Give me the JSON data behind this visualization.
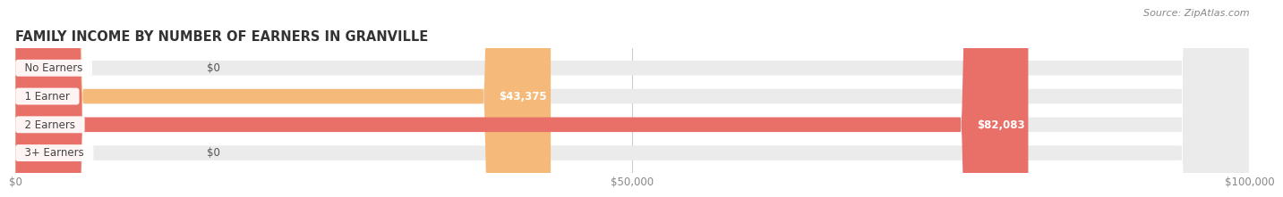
{
  "title": "FAMILY INCOME BY NUMBER OF EARNERS IN GRANVILLE",
  "source": "Source: ZipAtlas.com",
  "categories": [
    "No Earners",
    "1 Earner",
    "2 Earners",
    "3+ Earners"
  ],
  "values": [
    0,
    43375,
    82083,
    0
  ],
  "bar_colors": [
    "#f4a0b5",
    "#f5ba7a",
    "#e87068",
    "#a8c8e8"
  ],
  "bar_bg_color": "#ebebeb",
  "xlim": [
    0,
    100000
  ],
  "xticks": [
    0,
    50000,
    100000
  ],
  "xtick_labels": [
    "$0",
    "$50,000",
    "$100,000"
  ],
  "value_labels": [
    "$0",
    "$43,375",
    "$82,083",
    "$0"
  ],
  "fig_width": 14.06,
  "fig_height": 2.33,
  "background_color": "#ffffff",
  "title_color": "#333333",
  "title_fontsize": 10.5,
  "bar_height": 0.52,
  "label_fontsize": 8.5,
  "value_fontsize": 8.5,
  "tick_fontsize": 8.5
}
